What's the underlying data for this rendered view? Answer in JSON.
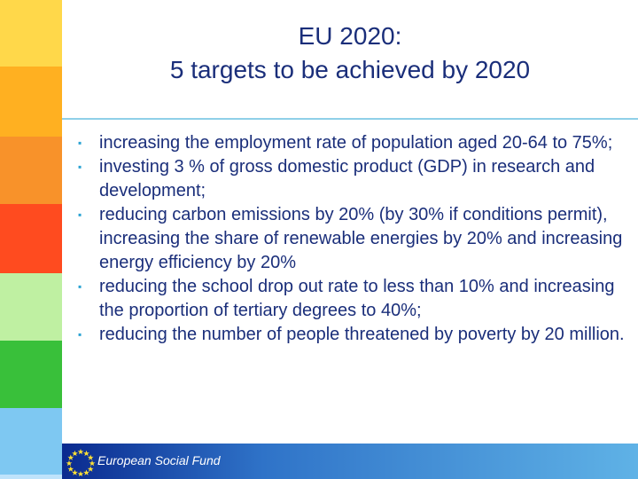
{
  "slide": {
    "title_line1": "EU 2020:",
    "title_line2": "5 targets to be achieved by 2020"
  },
  "bullets": [
    "increasing the employment rate of population aged 20-64 to 75%;",
    "investing 3 % of gross domestic product (GDP) in research and development;",
    "reducing carbon emissions by 20% (by 30% if conditions permit), increasing the share of renewable energies by 20% and increasing energy efficiency by 20%",
    "reducing the school drop out rate to less than 10% and increasing the proportion of tertiary degrees to 40%;",
    "reducing the number of people threatened by poverty by 20 million."
  ],
  "bullet_marker": "▪",
  "footer": {
    "label": "European Social Fund",
    "flag_icon": "eu-flag-icon"
  },
  "colors": {
    "title": "#1a2e7a",
    "text": "#1a2e7a",
    "marker": "#2ba3d3",
    "rule": "#8fd0e8",
    "stripe": [
      "#ffd84a",
      "#ffb021",
      "#f8922a",
      "#ff4b1f",
      "#bff0a2",
      "#39c03a",
      "#7ec8f2",
      "#bfe3fb"
    ],
    "footer_start": "#0a2a8f",
    "footer_end": "#5fb2e6"
  }
}
